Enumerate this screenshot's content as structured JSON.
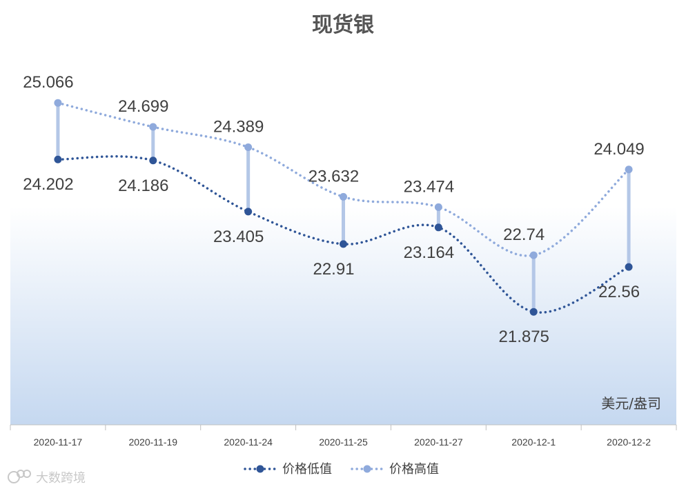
{
  "chart_data": {
    "type": "line",
    "title": "现货银",
    "unit": "美元/盎司",
    "categories": [
      "2020-11-17",
      "2020-11-19",
      "2020-11-24",
      "2020-11-25",
      "2020-11-27",
      "2020-12-1",
      "2020-12-2"
    ],
    "series": [
      {
        "name": "价格低值",
        "color": "#2f5597",
        "values": [
          24.202,
          24.186,
          23.405,
          22.91,
          23.164,
          21.875,
          22.56
        ]
      },
      {
        "name": "价格高值",
        "color": "#8faadc",
        "values": [
          25.066,
          24.699,
          24.389,
          23.632,
          23.474,
          22.74,
          24.049
        ]
      }
    ],
    "ylim": [
      20.15,
      25.9
    ],
    "high_low_lines": true,
    "legend_position": "bottom",
    "grid": false,
    "background_gradient": [
      "#ffffff",
      "#c5d8f0"
    ]
  },
  "watermark": {
    "text": "大数跨境",
    "icon": "brand-logo-icon"
  }
}
